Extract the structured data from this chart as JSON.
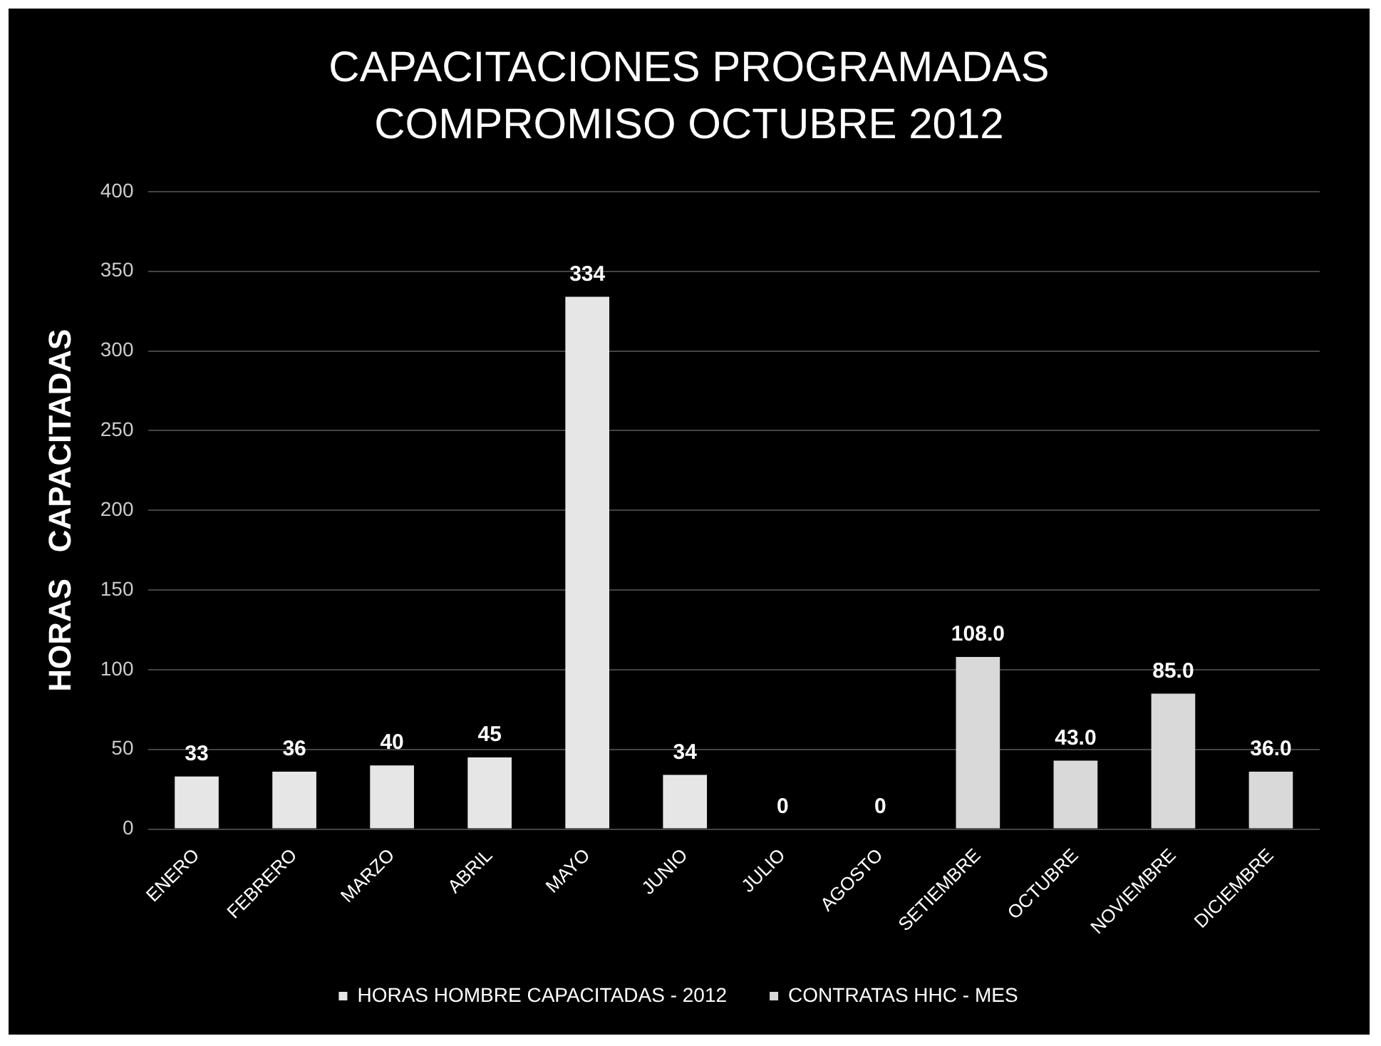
{
  "chart_data": {
    "type": "bar",
    "title": "CAPACITACIONES PROGRAMADAS  COMPROMISO OCTUBRE 2012",
    "ylabel": "HORAS   CAPACITADAS",
    "categories": [
      "ENERO",
      "FEBRERO",
      "MARZO",
      "ABRIL",
      "MAYO",
      "JUNIO",
      "JULIO",
      "AGOSTO",
      "SETIEMBRE",
      "OCTUBRE",
      "NOVIEMBRE",
      "DICIEMBRE"
    ],
    "series": [
      {
        "name": "HORAS HOMBRE CAPACITADAS - 2012",
        "color": "#e6e6e6",
        "values": [
          33,
          36,
          40,
          45,
          334,
          34,
          0,
          0,
          null,
          null,
          null,
          null
        ],
        "value_labels": [
          "33",
          "36",
          "40",
          "45",
          "334",
          "34",
          "0",
          "0",
          null,
          null,
          null,
          null
        ]
      },
      {
        "name": "CONTRATAS HHC - MES",
        "color": "#d9d9d9",
        "values": [
          null,
          null,
          null,
          null,
          null,
          null,
          null,
          null,
          108,
          43,
          85,
          36
        ],
        "value_labels": [
          null,
          null,
          null,
          null,
          null,
          null,
          null,
          null,
          "108.0",
          "43.0",
          "85.0",
          "36.0"
        ]
      }
    ],
    "ylim": [
      0,
      400
    ],
    "yticks": [
      0,
      50,
      100,
      150,
      200,
      250,
      300,
      350,
      400
    ],
    "grid": "y",
    "legend": "bottom"
  }
}
